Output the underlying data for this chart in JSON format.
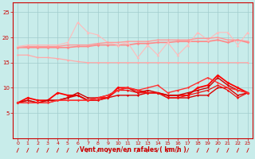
{
  "title": "",
  "xlabel": "Vent moyen/en rafales ( km/h )",
  "xlim": [
    -0.5,
    23.5
  ],
  "ylim": [
    0,
    27
  ],
  "yticks": [
    5,
    10,
    15,
    20,
    25
  ],
  "xticks": [
    0,
    1,
    2,
    3,
    4,
    5,
    6,
    7,
    8,
    9,
    10,
    11,
    12,
    13,
    14,
    15,
    16,
    17,
    18,
    19,
    20,
    21,
    22,
    23
  ],
  "background_color": "#c8ecea",
  "grid_color": "#a0cccc",
  "series": [
    {
      "y": [
        16.5,
        16.5,
        16.0,
        16.0,
        15.8,
        15.5,
        15.2,
        15.0,
        15.0,
        15.0,
        15.0,
        15.0,
        15.0,
        15.0,
        15.0,
        15.0,
        15.0,
        15.0,
        15.0,
        15.0,
        15.0,
        15.0,
        15.0,
        15.0
      ],
      "color": "#ffaaaa",
      "lw": 0.9,
      "marker": "D",
      "ms": 1.5
    },
    {
      "y": [
        18.0,
        18.0,
        18.0,
        18.0,
        18.0,
        18.0,
        18.2,
        18.2,
        18.5,
        18.5,
        18.5,
        18.5,
        18.8,
        18.8,
        19.0,
        19.0,
        19.2,
        19.2,
        19.2,
        19.2,
        19.5,
        19.0,
        19.5,
        19.0
      ],
      "color": "#ff8888",
      "lw": 1.2,
      "marker": "D",
      "ms": 1.8
    },
    {
      "y": [
        18.2,
        18.5,
        18.5,
        18.5,
        18.5,
        19.0,
        23.0,
        21.0,
        20.5,
        19.0,
        18.5,
        19.0,
        16.0,
        18.5,
        16.5,
        19.0,
        16.5,
        18.5,
        21.0,
        19.5,
        21.0,
        21.0,
        18.5,
        21.0
      ],
      "color": "#ffbbbb",
      "lw": 0.8,
      "marker": "^",
      "ms": 2.5
    },
    {
      "y": [
        18.0,
        18.2,
        18.2,
        18.2,
        18.2,
        18.5,
        18.5,
        18.5,
        18.8,
        19.0,
        19.0,
        19.2,
        19.2,
        19.2,
        19.5,
        19.5,
        19.5,
        19.5,
        19.8,
        19.8,
        20.0,
        19.5,
        19.5,
        19.2
      ],
      "color": "#ff9999",
      "lw": 1.0,
      "marker": "D",
      "ms": 1.5
    },
    {
      "y": [
        7.0,
        8.0,
        7.5,
        7.5,
        9.0,
        8.5,
        8.5,
        7.5,
        8.0,
        8.0,
        10.0,
        10.0,
        9.5,
        9.0,
        9.0,
        8.5,
        8.5,
        8.5,
        10.0,
        10.5,
        12.5,
        11.0,
        10.0,
        9.0
      ],
      "color": "#ff0000",
      "lw": 1.3,
      "marker": "D",
      "ms": 2.0
    },
    {
      "y": [
        7.0,
        7.5,
        7.0,
        7.5,
        7.5,
        8.0,
        8.5,
        7.5,
        7.5,
        8.0,
        8.5,
        8.5,
        8.5,
        9.0,
        9.0,
        8.0,
        8.0,
        8.0,
        8.5,
        8.5,
        10.0,
        10.0,
        8.5,
        9.0
      ],
      "color": "#dd0000",
      "lw": 1.0,
      "marker": "D",
      "ms": 1.5
    },
    {
      "y": [
        7.0,
        7.5,
        7.0,
        7.5,
        7.5,
        8.0,
        9.0,
        8.0,
        8.0,
        8.5,
        9.5,
        10.0,
        9.0,
        9.5,
        9.0,
        8.5,
        8.5,
        9.0,
        9.5,
        10.0,
        12.0,
        10.5,
        9.5,
        9.0
      ],
      "color": "#cc0000",
      "lw": 1.0,
      "marker": "D",
      "ms": 1.5
    },
    {
      "y": [
        7.0,
        7.0,
        7.0,
        7.0,
        7.5,
        7.5,
        7.5,
        7.5,
        7.5,
        8.0,
        9.5,
        9.5,
        9.0,
        9.0,
        9.0,
        8.0,
        8.0,
        8.5,
        9.0,
        9.5,
        10.5,
        9.5,
        8.0,
        9.0
      ],
      "color": "#ee1111",
      "lw": 0.9,
      "marker": "D",
      "ms": 1.5
    },
    {
      "y": [
        7.0,
        7.0,
        7.0,
        7.0,
        7.5,
        7.5,
        7.5,
        7.5,
        8.0,
        8.5,
        9.5,
        10.0,
        9.5,
        10.0,
        10.5,
        9.0,
        9.5,
        10.0,
        11.0,
        12.0,
        11.0,
        10.0,
        9.5,
        9.0
      ],
      "color": "#ff3333",
      "lw": 1.0,
      "marker": "D",
      "ms": 1.5
    }
  ]
}
